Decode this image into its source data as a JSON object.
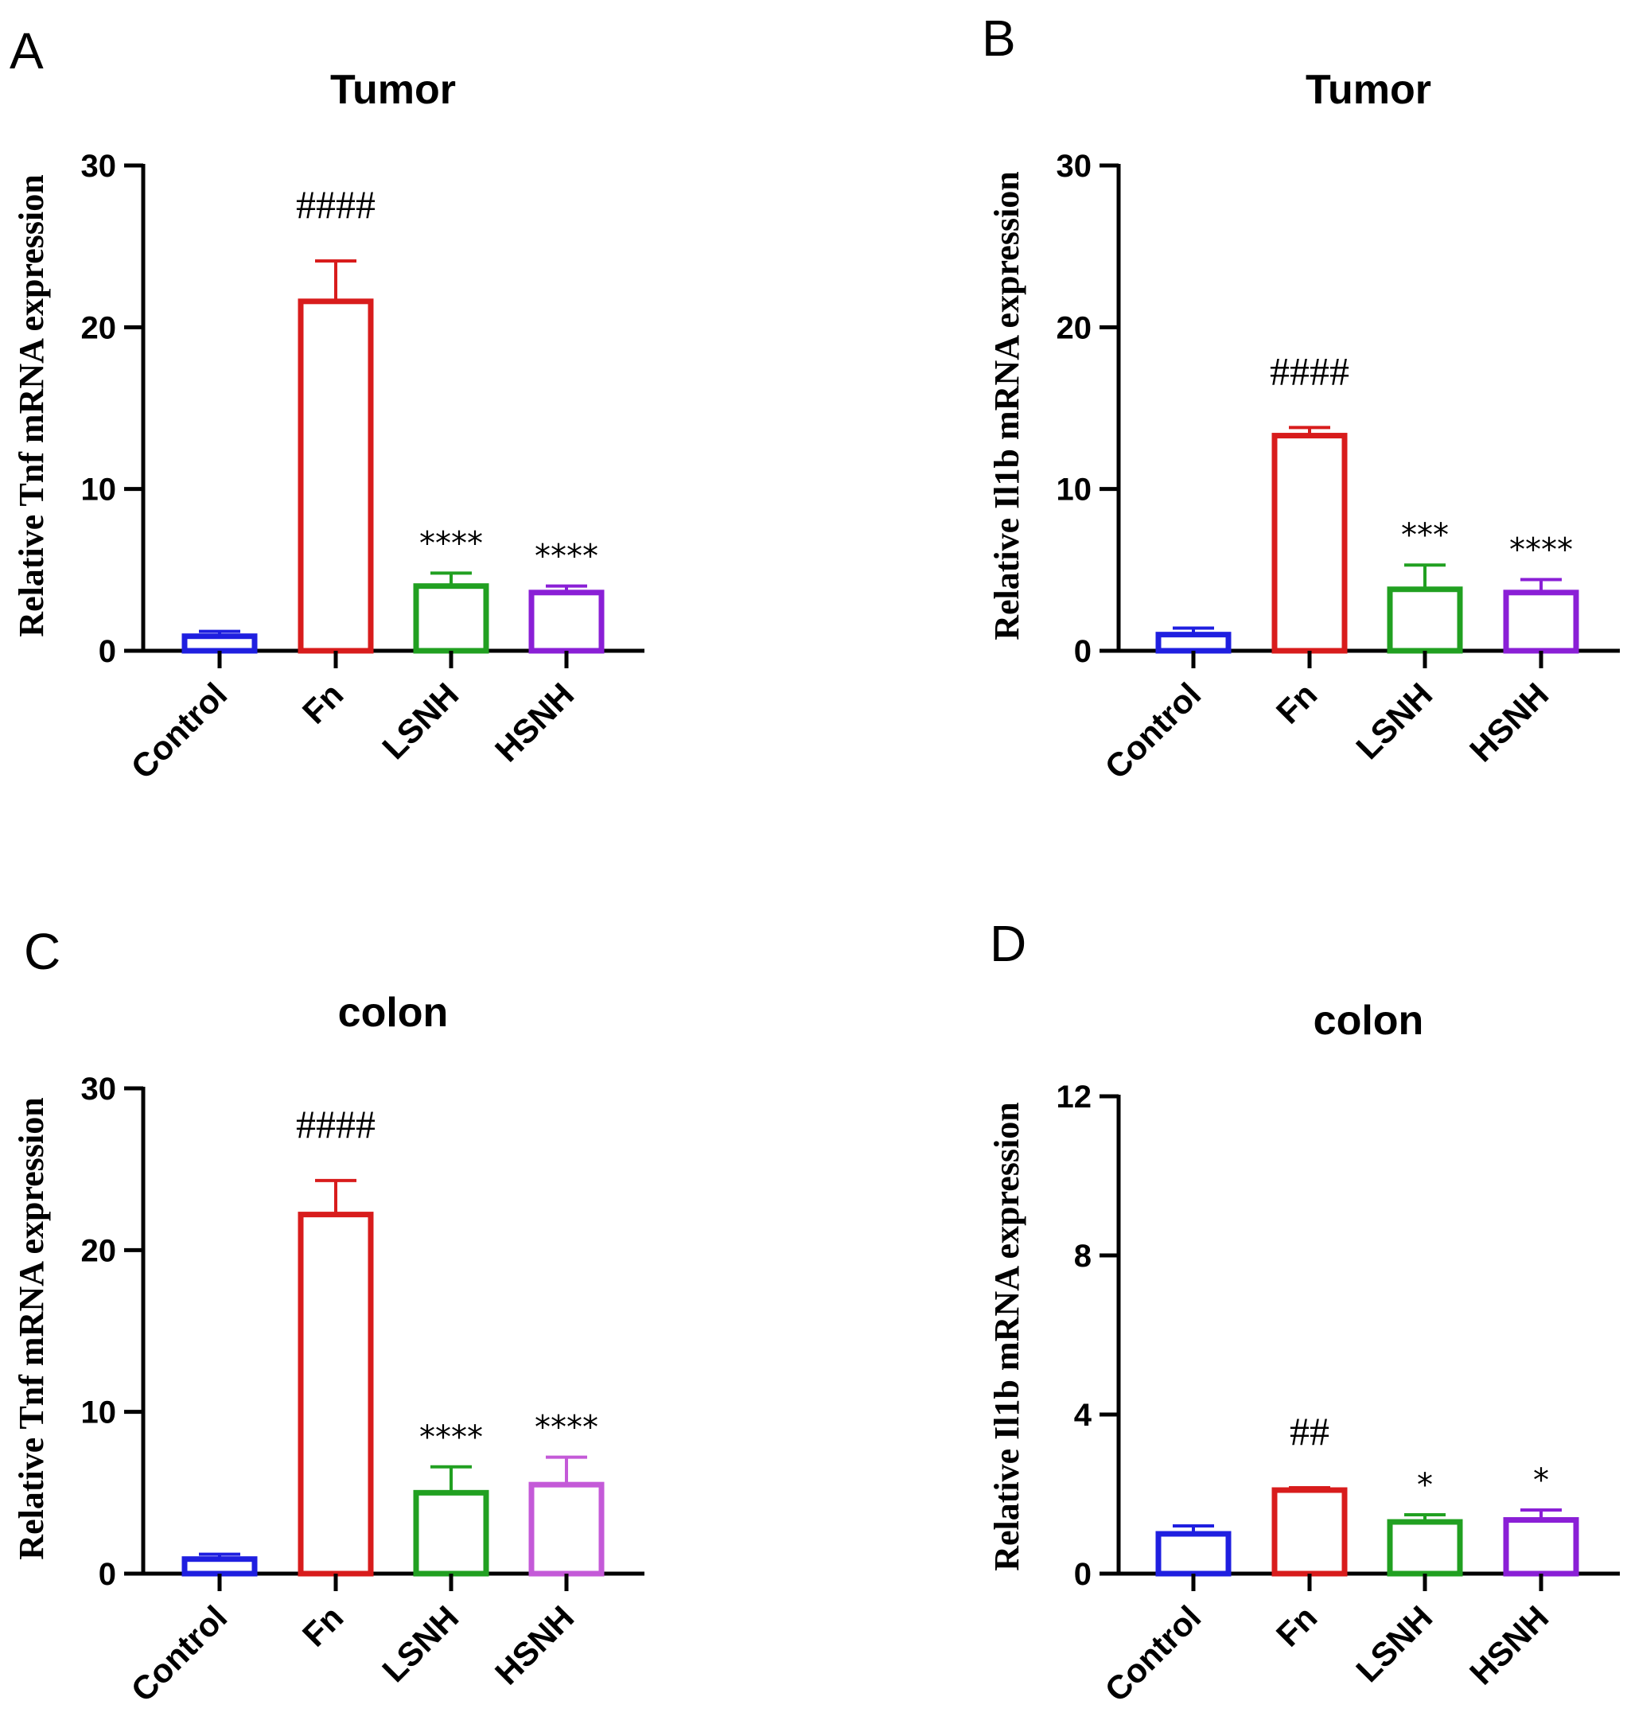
{
  "figure": {
    "colors": {
      "Control": "#1f1fe0",
      "Fn": "#d81c1c",
      "LSNH": "#21a021",
      "HSNH": "#8a1fd6",
      "HSNH_C": "#c45ad8",
      "axis": "#000000"
    }
  },
  "chart_data": [
    {
      "panel": "A",
      "type": "bar",
      "title": "Tumor",
      "xlabel": "",
      "ylabel": "Relative Tnf mRNA expression",
      "ylim": [
        0,
        30
      ],
      "yticks": [
        0,
        10,
        20,
        30
      ],
      "categories": [
        "Control",
        "Fn",
        "LSNH",
        "HSNH"
      ],
      "values": [
        0.9,
        21.6,
        4.0,
        3.6
      ],
      "errors": [
        0.3,
        2.5,
        0.8,
        0.4
      ],
      "significance": [
        "",
        "####",
        "****",
        "****"
      ],
      "grid": false
    },
    {
      "panel": "B",
      "type": "bar",
      "title": "Tumor",
      "xlabel": "",
      "ylabel": "Relative Il1b mRNA expression",
      "ylim": [
        0,
        30
      ],
      "yticks": [
        0,
        10,
        20,
        30
      ],
      "categories": [
        "Control",
        "Fn",
        "LSNH",
        "HSNH"
      ],
      "values": [
        1.0,
        13.3,
        3.8,
        3.6
      ],
      "errors": [
        0.4,
        0.5,
        1.5,
        0.8
      ],
      "significance": [
        "",
        "####",
        "***",
        "****"
      ],
      "grid": false
    },
    {
      "panel": "C",
      "type": "bar",
      "title": "colon",
      "xlabel": "",
      "ylabel": "Relative Tnf mRNA expression",
      "ylim": [
        0,
        30
      ],
      "yticks": [
        0,
        10,
        20,
        30
      ],
      "categories": [
        "Control",
        "Fn",
        "LSNH",
        "HSNH"
      ],
      "values": [
        0.9,
        22.2,
        5.0,
        5.5
      ],
      "errors": [
        0.3,
        2.1,
        1.6,
        1.7
      ],
      "significance": [
        "",
        "####",
        "****",
        "****"
      ],
      "grid": false
    },
    {
      "panel": "D",
      "type": "bar",
      "title": "colon",
      "xlabel": "",
      "ylabel": "Relative Il1b mRNA expression",
      "ylim": [
        0,
        12
      ],
      "yticks": [
        0,
        4,
        8,
        12
      ],
      "categories": [
        "Control",
        "Fn",
        "LSNH",
        "HSNH"
      ],
      "values": [
        1.0,
        2.1,
        1.3,
        1.35
      ],
      "errors": [
        0.2,
        0.06,
        0.18,
        0.25
      ],
      "significance": [
        "",
        "##",
        "*",
        "*"
      ],
      "grid": false
    }
  ]
}
